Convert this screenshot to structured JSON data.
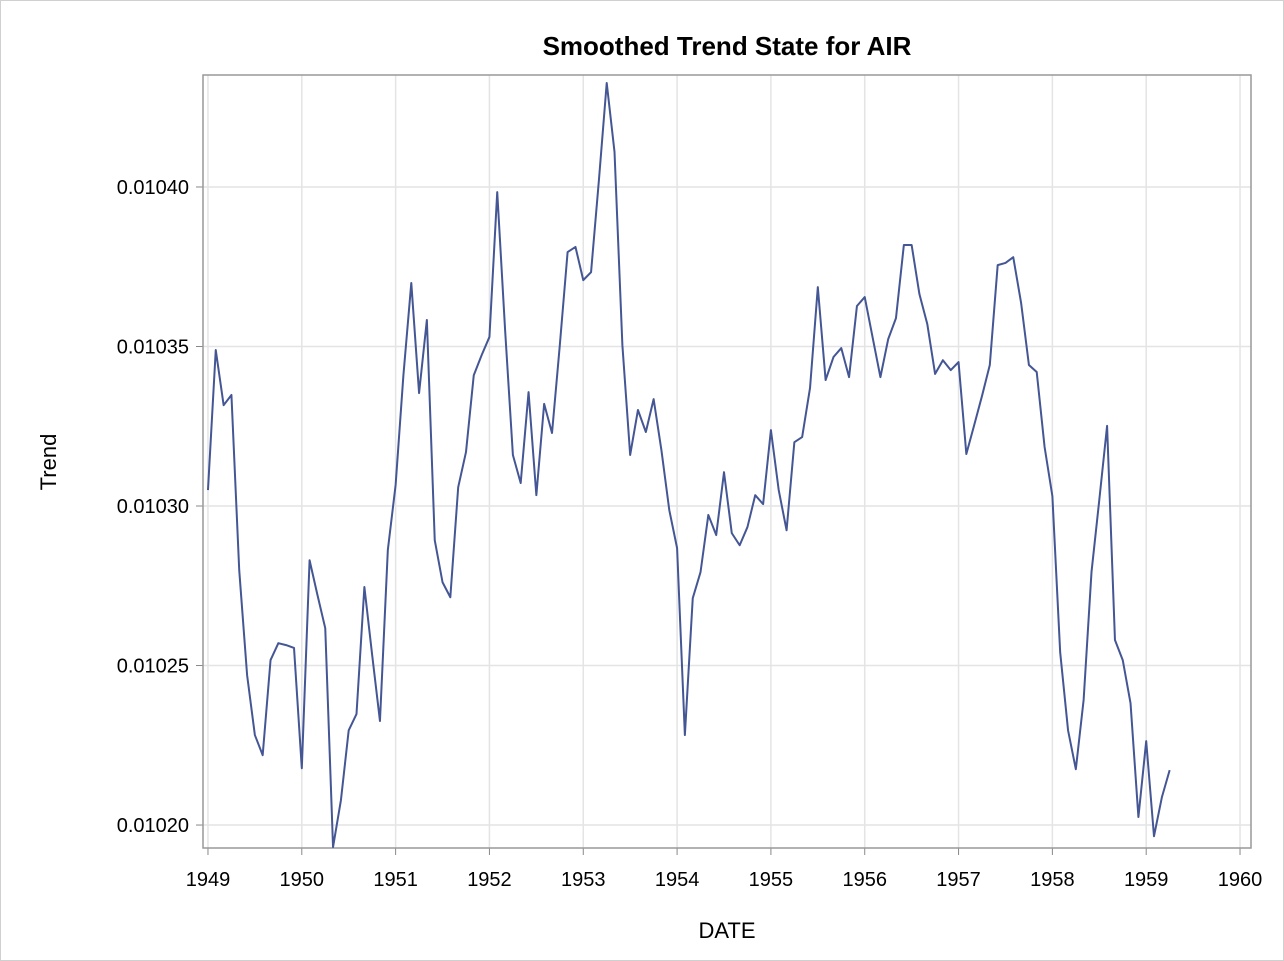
{
  "chart_data": {
    "type": "line",
    "title": "Smoothed Trend State for AIR",
    "x_label": "DATE",
    "y_label": "Trend",
    "x": [
      1949,
      1949.083,
      1949.167,
      1949.25,
      1949.333,
      1949.417,
      1949.5,
      1949.583,
      1949.667,
      1949.75,
      1949.833,
      1949.917,
      1950,
      1950.083,
      1950.167,
      1950.25,
      1950.333,
      1950.417,
      1950.5,
      1950.583,
      1950.667,
      1950.75,
      1950.833,
      1950.917,
      1951,
      1951.083,
      1951.167,
      1951.25,
      1951.333,
      1951.417,
      1951.5,
      1951.583,
      1951.667,
      1951.75,
      1951.833,
      1951.917,
      1952,
      1952.083,
      1952.167,
      1952.25,
      1952.333,
      1952.417,
      1952.5,
      1952.583,
      1952.667,
      1952.75,
      1952.833,
      1952.917,
      1953,
      1953.083,
      1953.167,
      1953.25,
      1953.333,
      1953.417,
      1953.5,
      1953.583,
      1953.667,
      1953.75,
      1953.833,
      1953.917,
      1954,
      1954.083,
      1954.167,
      1954.25,
      1954.333,
      1954.417,
      1954.5,
      1954.583,
      1954.667,
      1954.75,
      1954.833,
      1954.917,
      1955,
      1955.083,
      1955.167,
      1955.25,
      1955.333,
      1955.417,
      1955.5,
      1955.583,
      1955.667,
      1955.75,
      1955.833,
      1955.917,
      1956,
      1956.083,
      1956.167,
      1956.25,
      1956.333,
      1956.417,
      1956.5,
      1956.583,
      1956.667,
      1956.75,
      1956.833,
      1956.917,
      1957,
      1957.083,
      1957.167,
      1957.25,
      1957.333,
      1957.417,
      1957.5,
      1957.583,
      1957.667,
      1957.75,
      1957.833,
      1957.917,
      1958,
      1958.083,
      1958.167,
      1958.25,
      1958.333,
      1958.417,
      1958.5,
      1958.583,
      1958.667,
      1958.75,
      1958.833,
      1958.917,
      1959,
      1959.083,
      1959.167,
      1959.25
    ],
    "series": [
      {
        "name": "Trend",
        "color": "#445694",
        "values": [
          0.010305,
          0.0103489,
          0.0103316,
          0.0103348,
          0.0102799,
          0.010247,
          0.0102282,
          0.0102219,
          0.0102517,
          0.010257,
          0.0102564,
          0.0102555,
          0.0102178,
          0.010283,
          0.0102721,
          0.0102617,
          0.0101931,
          0.0102078,
          0.0102297,
          0.0102348,
          0.0102746,
          0.0102533,
          0.0102326,
          0.0102862,
          0.0103066,
          0.010341,
          0.0103699,
          0.0103354,
          0.0103583,
          0.0102893,
          0.0102761,
          0.0102714,
          0.0103059,
          0.0103169,
          0.010341,
          0.0103473,
          0.010353,
          0.0103984,
          0.0103551,
          0.010316,
          0.0103072,
          0.0103357,
          0.0103034,
          0.010332,
          0.0103229,
          0.0103504,
          0.0103796,
          0.0103812,
          0.0103708,
          0.0103733,
          0.0104022,
          0.0104326,
          0.010411,
          0.0103504,
          0.010316,
          0.0103301,
          0.0103232,
          0.0103335,
          0.0103175,
          0.0102987,
          0.0102868,
          0.0102282,
          0.0102711,
          0.0102793,
          0.0102972,
          0.0102909,
          0.0103106,
          0.0102915,
          0.0102877,
          0.0102934,
          0.0103034,
          0.0103006,
          0.0103238,
          0.010305,
          0.0102924,
          0.01032,
          0.0103216,
          0.010337,
          0.0103686,
          0.0103395,
          0.0103467,
          0.0103495,
          0.0103404,
          0.0103627,
          0.0103655,
          0.010353,
          0.0103404,
          0.0103523,
          0.0103589,
          0.0103818,
          0.0103818,
          0.0103664,
          0.010357,
          0.0103414,
          0.0103457,
          0.0103426,
          0.0103451,
          0.0103163,
          0.0103254,
          0.0103345,
          0.0103442,
          0.0103755,
          0.0103762,
          0.010378,
          0.0103636,
          0.0103442,
          0.010342,
          0.0103185,
          0.0103031,
          0.0102542,
          0.0102297,
          0.0102175,
          0.0102392,
          0.0102793,
          0.0103019,
          0.0103251,
          0.010258,
          0.0102517,
          0.0102382,
          0.0102025,
          0.0102263,
          0.0101965,
          0.0102087,
          0.0102172
        ]
      }
    ],
    "xlim": [
      1948.947,
      1960.117
    ],
    "xticks": [
      1949,
      1950,
      1951,
      1952,
      1953,
      1954,
      1955,
      1956,
      1957,
      1958,
      1959,
      1960
    ],
    "ylim": [
      0.0101928,
      0.0104351
    ],
    "yticks": [
      {
        "value": 0.0102,
        "label": "0.01020"
      },
      {
        "value": 0.01025,
        "label": "0.01025"
      },
      {
        "value": 0.0103,
        "label": "0.01030"
      },
      {
        "value": 0.01035,
        "label": "0.01035"
      },
      {
        "value": 0.0104,
        "label": "0.01040"
      }
    ],
    "grid": true
  }
}
